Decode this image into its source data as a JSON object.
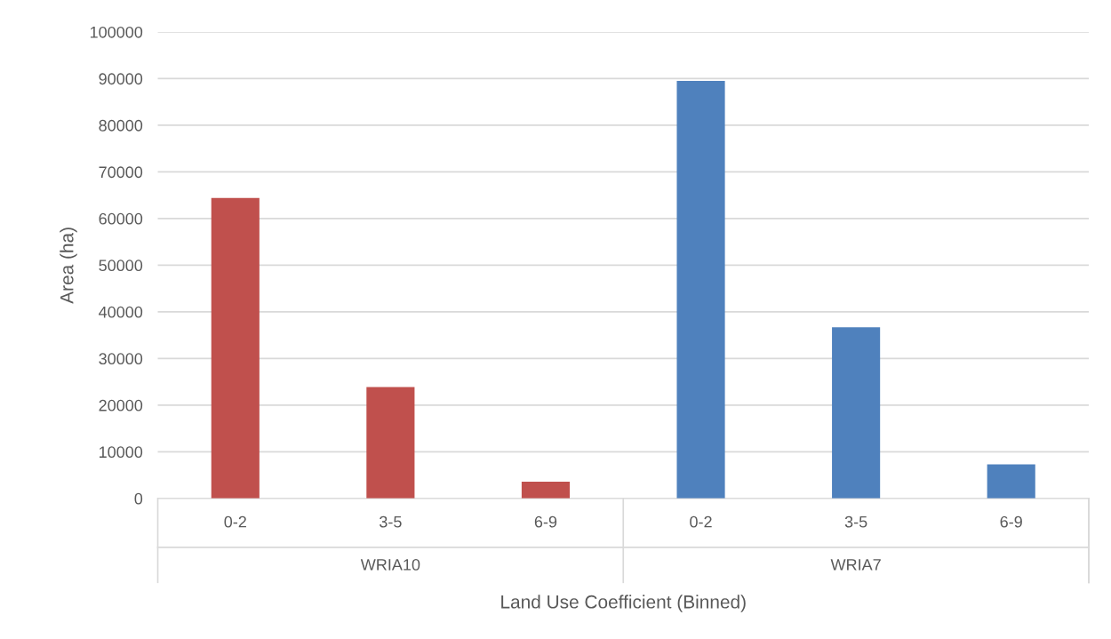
{
  "chart_data": {
    "type": "bar",
    "xlabel": "Land Use Coefficient (Binned)",
    "ylabel": "Area (ha)",
    "categories": [
      "0-2",
      "3-5",
      "6-9",
      "0-2",
      "3-5",
      "6-9"
    ],
    "series": [
      {
        "color": "#c0504d",
        "values": [
          64400,
          23900,
          3600,
          null,
          null,
          null
        ]
      },
      {
        "color": "#4f81bd",
        "values": [
          null,
          null,
          null,
          89500,
          36700,
          7300
        ]
      }
    ],
    "ylim": [
      0,
      100000
    ],
    "yticks": [
      0,
      10000,
      20000,
      30000,
      40000,
      50000,
      60000,
      70000,
      80000,
      90000,
      100000
    ],
    "annotations": [
      "WRIA10",
      "WRIA7"
    ],
    "grid": "y"
  }
}
